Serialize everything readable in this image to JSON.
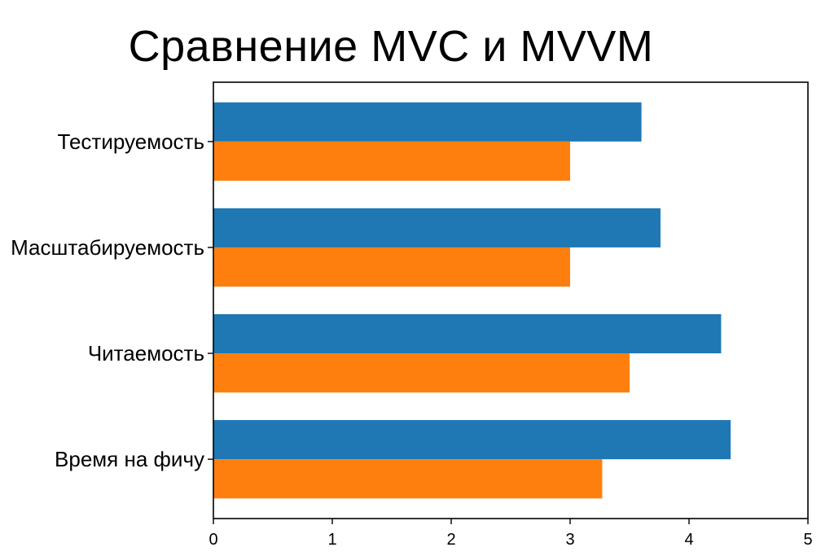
{
  "chart_data": {
    "type": "bar",
    "orientation": "horizontal",
    "title": "Сравнение MVC и MVVM",
    "xlabel": "",
    "ylabel": "",
    "categories": [
      "Время на фичу",
      "Читаемость",
      "Масштабируемость",
      "Тестируемость"
    ],
    "series": [
      {
        "color": "#1f77b4",
        "values": [
          4.35,
          4.27,
          3.76,
          3.6
        ]
      },
      {
        "color": "#ff7f0e",
        "values": [
          3.27,
          3.5,
          3.0,
          3.0
        ]
      }
    ],
    "xlim": [
      0,
      5
    ],
    "xticks": [
      "0",
      "1",
      "2",
      "3",
      "4",
      "5"
    ],
    "grid": false,
    "legend": "none"
  }
}
